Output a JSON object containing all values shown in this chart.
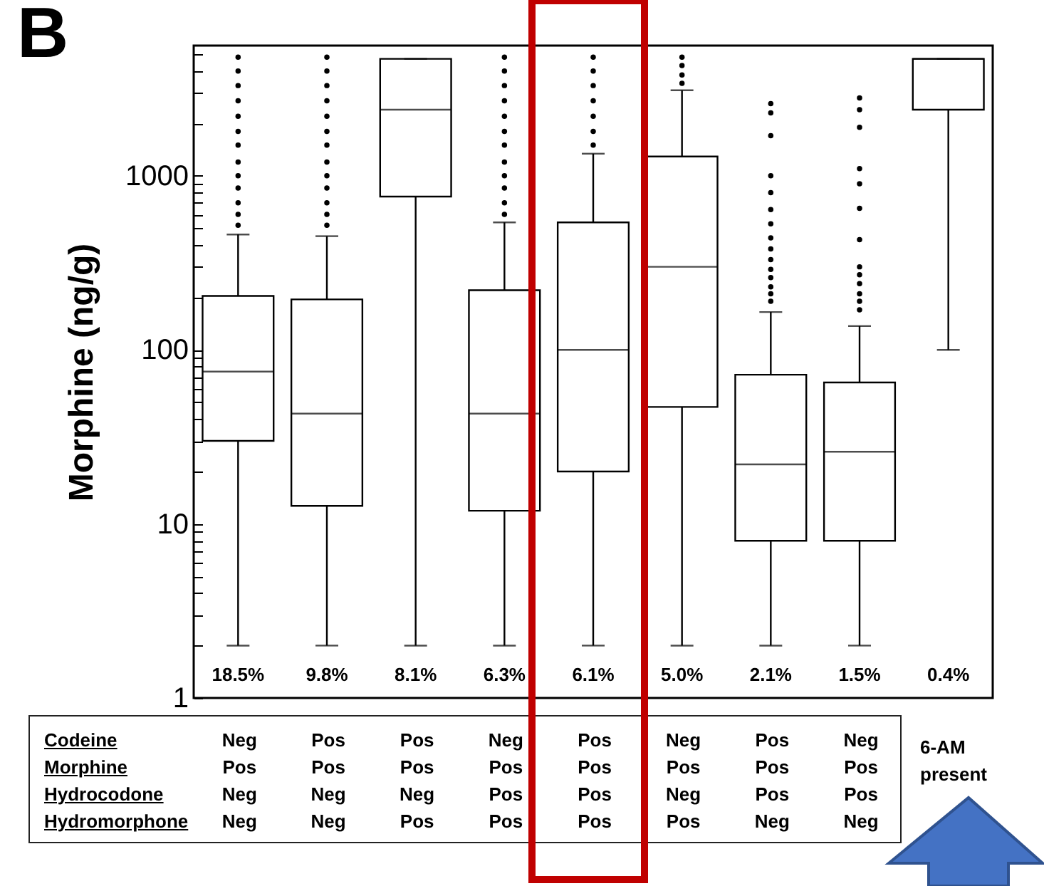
{
  "chart_data": [
    {
      "type": "box",
      "title": "B",
      "ylabel": "Morphine (ng/g)",
      "log": true,
      "grid": false,
      "categories": [
        "18.5%",
        "9.8%",
        "8.1%",
        "6.3%",
        "6.1%",
        "5.0%",
        "2.1%",
        "1.5%",
        "0.4%"
      ],
      "ylim": [
        1,
        5600
      ],
      "yticks": [
        1,
        {
          "value": 2,
          "label": null
        },
        {
          "value": 3,
          "label": null
        },
        {
          "value": 4,
          "label": null
        },
        {
          "value": 5,
          "label": null
        },
        {
          "value": 6,
          "label": null
        },
        {
          "value": 7,
          "label": null
        },
        {
          "value": 8,
          "label": null
        },
        {
          "value": 9,
          "label": null
        },
        10,
        {
          "value": 20,
          "label": null
        },
        {
          "value": 30,
          "label": null
        },
        {
          "value": 40,
          "label": null
        },
        {
          "value": 50,
          "label": null
        },
        {
          "value": 60,
          "label": null
        },
        {
          "value": 70,
          "label": null
        },
        {
          "value": 80,
          "label": null
        },
        {
          "value": 90,
          "label": null
        },
        100,
        {
          "value": 200,
          "label": null
        },
        {
          "value": 300,
          "label": null
        },
        {
          "value": 400,
          "label": null
        },
        {
          "value": 500,
          "label": null
        },
        {
          "value": 600,
          "label": null
        },
        {
          "value": 700,
          "label": null
        },
        {
          "value": 800,
          "label": null
        },
        {
          "value": 900,
          "label": null
        },
        1000,
        {
          "value": 2000,
          "label": null
        },
        {
          "value": 3000,
          "label": null
        },
        {
          "value": 4000,
          "label": null
        },
        {
          "value": 5000,
          "label": null
        }
      ],
      "boxes": [
        {
          "low": 2,
          "q1": 30,
          "median": 75,
          "q3": 204,
          "high": 460,
          "outliers": [
            520,
            600,
            700,
            850,
            1000,
            1200,
            1500,
            1800,
            2200,
            2700,
            3300,
            4000,
            4800
          ]
        },
        {
          "low": 2,
          "q1": 12.7,
          "median": 43,
          "q3": 195,
          "high": 450,
          "outliers": [
            520,
            600,
            700,
            850,
            1000,
            1200,
            1500,
            1800,
            2200,
            2700,
            3300,
            4000,
            4800
          ]
        },
        {
          "low": 2,
          "q1": 760,
          "median": 2400,
          "q3": 4700,
          "high": 4700
        },
        {
          "low": 2,
          "q1": 11.9,
          "median": 43,
          "q3": 220,
          "high": 540,
          "outliers": [
            600,
            700,
            850,
            1000,
            1200,
            1500,
            1800,
            2200,
            2700,
            3300,
            4000,
            4800
          ]
        },
        {
          "low": 2,
          "q1": 20,
          "median": 100,
          "q3": 540,
          "high": 1340,
          "outliers": [
            1500,
            1800,
            2200,
            2700,
            3300,
            4000,
            4800
          ]
        },
        {
          "low": 2,
          "q1": 47,
          "median": 300,
          "q3": 1290,
          "high": 3100,
          "outliers": [
            3400,
            3800,
            4300,
            4800
          ]
        },
        {
          "low": 2,
          "q1": 8,
          "median": 22,
          "q3": 72,
          "high": 165,
          "outliers": [
            190,
            210,
            230,
            260,
            290,
            330,
            380,
            440,
            530,
            640,
            800,
            1000,
            1700,
            2300,
            2600
          ]
        },
        {
          "low": 2,
          "q1": 8,
          "median": 26,
          "q3": 65,
          "high": 137,
          "outliers": [
            170,
            190,
            210,
            240,
            270,
            300,
            430,
            650,
            900,
            1100,
            1900,
            2400,
            2800
          ]
        },
        {
          "low": 100,
          "q1": 2400,
          "median": 4700,
          "q3": 4700,
          "high": 4700
        }
      ]
    },
    {
      "type": "other",
      "annotations": [
        "Codeine",
        "Neg",
        "Pos",
        "Pos",
        "Neg",
        "Pos",
        "Neg",
        "Pos",
        "Neg",
        "Morphine",
        "Pos",
        "Pos",
        "Pos",
        "Pos",
        "Pos",
        "Pos",
        "Pos",
        "Pos",
        "Hydrocodone",
        "Neg",
        "Neg",
        "Neg",
        "Pos",
        "Pos",
        "Neg",
        "Pos",
        "Pos",
        "Hydromorphone",
        "Neg",
        "Neg",
        "Pos",
        "Pos",
        "Pos",
        "Pos",
        "Neg",
        "Neg",
        "6-AM present"
      ]
    }
  ]
}
